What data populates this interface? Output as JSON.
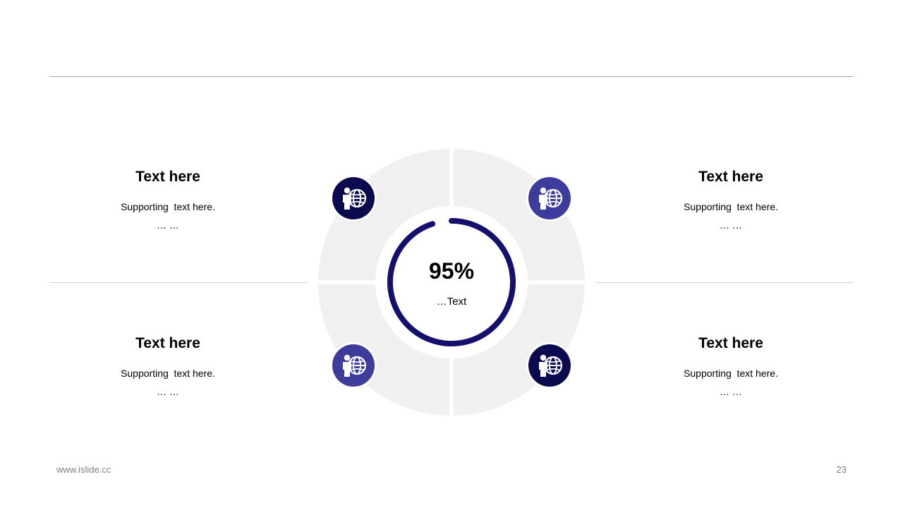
{
  "blocks": [
    {
      "title": "Text here",
      "support": "Supporting  text here.",
      "ellipsis": "… …"
    },
    {
      "title": "Text here",
      "support": "Supporting  text here.",
      "ellipsis": "… …"
    },
    {
      "title": "Text here",
      "support": "Supporting  text here.",
      "ellipsis": "… …"
    },
    {
      "title": "Text here",
      "support": "Supporting  text here.",
      "ellipsis": "… …"
    }
  ],
  "center": {
    "value": "95%",
    "progress_fraction": 0.95,
    "label": "…Text"
  },
  "icons": [
    {
      "name": "person-globe-icon",
      "color": "#0c0a4e"
    },
    {
      "name": "person-globe-icon",
      "color": "#3d3b9c"
    },
    {
      "name": "person-globe-icon",
      "color": "#3d3b9c"
    },
    {
      "name": "person-globe-icon",
      "color": "#0c0a4e"
    }
  ],
  "colors": {
    "ring_background": "#f0f0f0",
    "progress_arc": "#15106b",
    "dark_navy": "#0c0a4e",
    "medium_indigo": "#3d3b9c"
  },
  "footer": {
    "url": "www.islide.cc",
    "page_number": "23"
  }
}
